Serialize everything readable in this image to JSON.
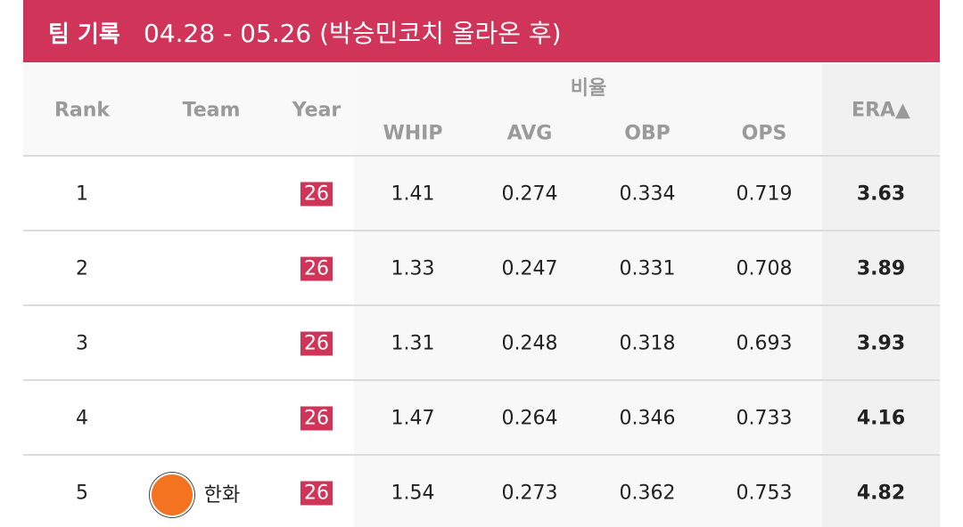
{
  "header": {
    "title": "팀 기록",
    "period": "04.28 - 05.26 (박승민코치 올라온 후)"
  },
  "table": {
    "columns": [
      "Rank",
      "Team",
      "Year"
    ],
    "group": "비율",
    "group_columns": [
      "WHIP",
      "AVG",
      "OBP",
      "OPS"
    ],
    "sort_column": "ERA▲",
    "rows": [
      [
        "1",
        null,
        "26",
        "1.41",
        "0.274",
        "0.334",
        "0.719",
        "3.63"
      ],
      [
        "2",
        null,
        "26",
        "1.33",
        "0.247",
        "0.331",
        "0.708",
        "3.89"
      ],
      [
        "3",
        null,
        "26",
        "1.31",
        "0.248",
        "0.318",
        "0.693",
        "3.93"
      ],
      [
        "4",
        null,
        "26",
        "1.47",
        "0.264",
        "0.346",
        "0.733",
        "4.16"
      ],
      [
        "5",
        "한화",
        "26",
        "1.54",
        "0.273",
        "0.362",
        "0.753",
        "4.82"
      ]
    ]
  }
}
